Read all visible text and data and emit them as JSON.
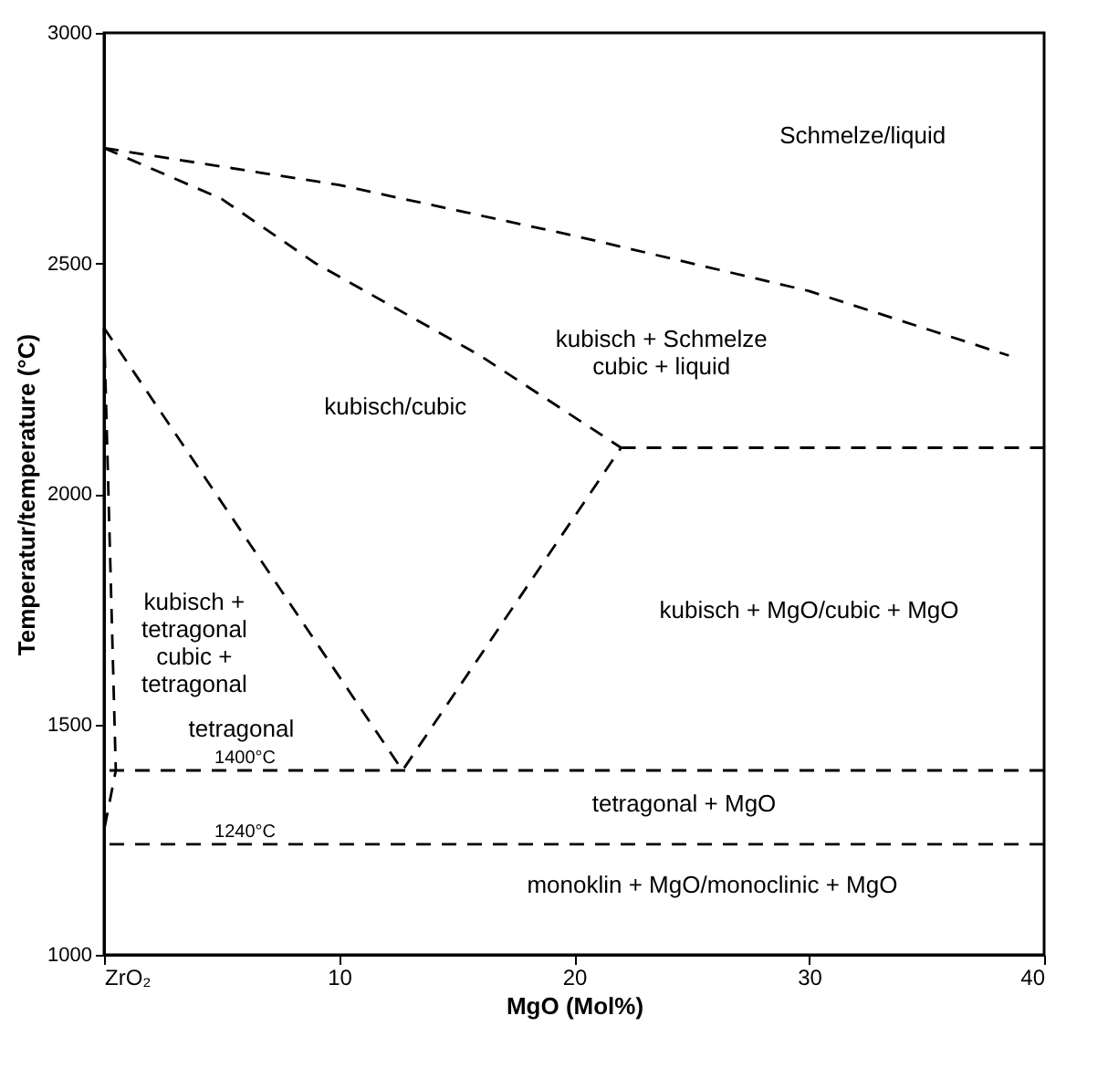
{
  "chart_data": {
    "type": "line",
    "xlabel": "MgO (Mol%)",
    "ylabel": "Temperatur/temperature (°C)",
    "xlim": [
      0,
      40
    ],
    "ylim": [
      1000,
      3000
    ],
    "xticks": [
      {
        "value": 0,
        "label": "ZrO₂"
      },
      10,
      20,
      30,
      40
    ],
    "yticks": [
      1000,
      1500,
      2000,
      2500,
      3000
    ],
    "grid": false,
    "marker": "none",
    "series": [
      {
        "color": "#000000",
        "line_style": "dashed",
        "x": [
          0,
          10,
          20,
          30,
          38.5
        ],
        "values": [
          2750,
          2670,
          2560,
          2440,
          2300
        ]
      },
      {
        "color": "#000000",
        "line_style": "dashed",
        "x": [
          0,
          5,
          9,
          16,
          22
        ],
        "values": [
          2750,
          2640,
          2500,
          2300,
          2100
        ]
      },
      {
        "color": "#000000",
        "line_style": "dashed",
        "x": [
          22,
          40
        ],
        "values": [
          2100,
          2100
        ]
      },
      {
        "color": "#000000",
        "line_style": "dashed",
        "x": [
          0,
          12.7,
          22
        ],
        "values": [
          2360,
          1400,
          2100
        ]
      },
      {
        "color": "#000000",
        "line_style": "dashed",
        "x": [
          0,
          0.5,
          0
        ],
        "values": [
          2360,
          1400,
          1270
        ]
      }
    ],
    "ref_lines": [
      {
        "axis": "y",
        "value": 1400,
        "label": "1400°C",
        "line_style": "dashed",
        "color": "#000000"
      },
      {
        "axis": "y",
        "value": 1240,
        "label": "1240°C",
        "line_style": "dashed",
        "color": "#000000"
      }
    ],
    "annotations": [
      "Schmelze/liquid",
      "kubisch + Schmelze\ncubic + liquid",
      "kubisch/cubic",
      "kubisch +\ntetragonal\ncubic +\ntetragonal",
      "tetragonal",
      "kubisch + MgO/cubic + MgO",
      "tetragonal + MgO",
      "monoklin + MgO/monoclinic + MgO"
    ]
  }
}
